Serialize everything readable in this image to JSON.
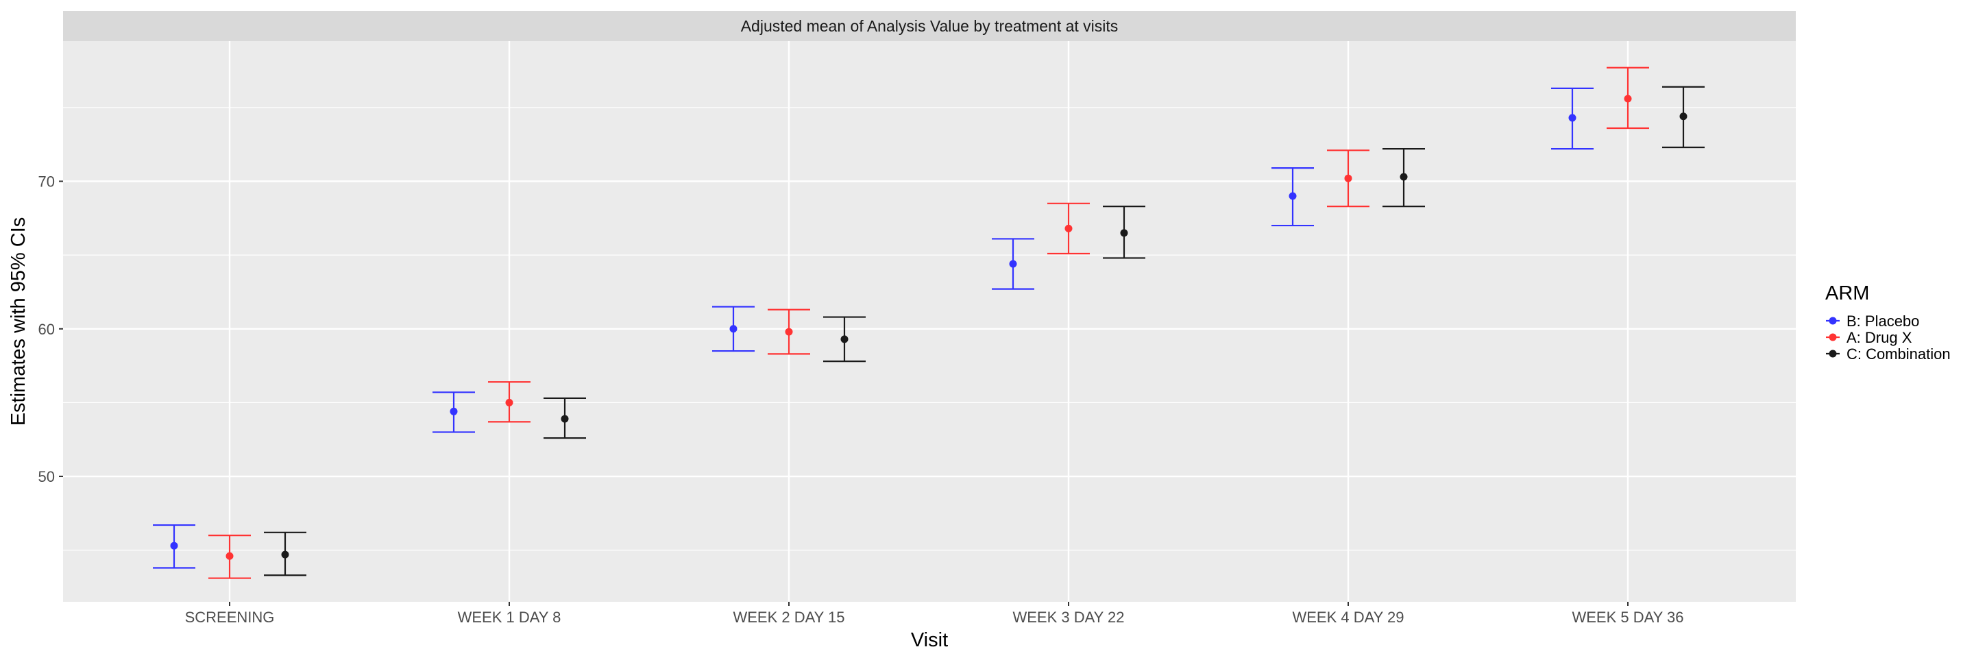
{
  "chart_data": {
    "type": "errorbar",
    "title": "Adjusted mean of Analysis Value by treatment at visits",
    "xlabel": "Visit",
    "ylabel": "Estimates with 95% CIs",
    "ylim": [
      41.5,
      79.5
    ],
    "yticks": [
      50,
      60,
      70
    ],
    "grid": true,
    "legend": {
      "title": "ARM",
      "placement": "right"
    },
    "categories": [
      "SCREENING",
      "WEEK 1 DAY 8",
      "WEEK 2 DAY 15",
      "WEEK 3 DAY 22",
      "WEEK 4 DAY 29",
      "WEEK 5 DAY 36"
    ],
    "series": [
      {
        "name": "B: Placebo",
        "color": "#3333ff",
        "estimate": [
          45.3,
          54.4,
          60.0,
          64.4,
          69.0,
          74.3
        ],
        "lower": [
          43.8,
          53.0,
          58.5,
          62.7,
          67.0,
          72.2
        ],
        "upper": [
          46.7,
          55.7,
          61.5,
          66.1,
          70.9,
          76.3
        ]
      },
      {
        "name": "A: Drug X",
        "color": "#ff3333",
        "estimate": [
          44.6,
          55.0,
          59.8,
          66.8,
          70.2,
          75.6
        ],
        "lower": [
          43.1,
          53.7,
          58.3,
          65.1,
          68.3,
          73.6
        ],
        "upper": [
          46.0,
          56.4,
          61.3,
          68.5,
          72.1,
          77.7
        ]
      },
      {
        "name": "C: Combination",
        "color": "#1a1a1a",
        "estimate": [
          44.7,
          53.9,
          59.3,
          66.5,
          70.3,
          74.4
        ],
        "lower": [
          43.3,
          52.6,
          57.8,
          64.8,
          68.3,
          72.3
        ],
        "upper": [
          46.2,
          55.3,
          60.8,
          68.3,
          72.2,
          76.4
        ]
      }
    ]
  }
}
